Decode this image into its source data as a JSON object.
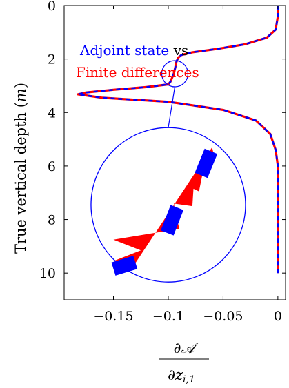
{
  "chart_data": {
    "type": "line",
    "title": "",
    "ylabel": "True vertical depth (m)",
    "ylabel_parts": {
      "text": "True vertical depth (",
      "unit": "m",
      "close": ")"
    },
    "xlabel_parts": {
      "numerator": "∂𝒜",
      "denominator": "∂z",
      "subscript": "i,1"
    },
    "xlim": [
      -0.195,
      0.007
    ],
    "ylim": [
      0,
      11
    ],
    "y_inverted": true,
    "xticks": [
      -0.15,
      -0.1,
      -0.05,
      0
    ],
    "xtick_labels": [
      "−0.15",
      "−0.1",
      "−0.05",
      "0"
    ],
    "yticks": [
      0,
      2,
      4,
      6,
      8,
      10
    ],
    "ytick_labels": [
      "0",
      "2",
      "4",
      "6",
      "8",
      "10"
    ],
    "grid": false,
    "legend_placement": "top-left",
    "legend": {
      "line1_prefix": "Adjoint state",
      "line1_suffix": " vs",
      "line2": "Finite differences"
    },
    "colors": {
      "adjoint": "#0000ff",
      "finite": "#ff0000",
      "axis": "#000000"
    },
    "series": [
      {
        "name": "Adjoint state",
        "style": "dashed",
        "x": [
          0,
          0,
          -0.002,
          -0.01,
          -0.03,
          -0.055,
          -0.078,
          -0.088,
          -0.091,
          -0.093,
          -0.0935,
          -0.095,
          -0.096,
          -0.097,
          -0.098,
          -0.1,
          -0.12,
          -0.15,
          -0.175,
          -0.1825,
          -0.16,
          -0.1,
          -0.05,
          -0.02,
          -0.007,
          -0.002,
          0,
          0
        ],
        "y": [
          0,
          0.4,
          0.9,
          1.2,
          1.45,
          1.62,
          1.75,
          1.85,
          1.95,
          2.15,
          2.3,
          2.55,
          2.65,
          2.75,
          2.85,
          2.95,
          3.05,
          3.15,
          3.25,
          3.32,
          3.45,
          3.6,
          3.9,
          4.3,
          4.8,
          5.4,
          6.0,
          10.0
        ]
      },
      {
        "name": "Finite differences",
        "style": "solid",
        "x": [
          0,
          0,
          -0.002,
          -0.01,
          -0.03,
          -0.055,
          -0.078,
          -0.088,
          -0.091,
          -0.093,
          -0.0935,
          -0.095,
          -0.096,
          -0.097,
          -0.098,
          -0.1,
          -0.12,
          -0.15,
          -0.175,
          -0.1825,
          -0.16,
          -0.1,
          -0.05,
          -0.02,
          -0.007,
          -0.002,
          0,
          0
        ],
        "y": [
          0,
          0.4,
          0.9,
          1.2,
          1.45,
          1.62,
          1.75,
          1.85,
          1.95,
          2.15,
          2.3,
          2.55,
          2.65,
          2.75,
          2.85,
          2.95,
          3.05,
          3.15,
          3.25,
          3.32,
          3.45,
          3.6,
          3.9,
          4.3,
          4.8,
          5.4,
          6.0,
          10.0
        ]
      }
    ],
    "annotations": {
      "zoom_source_center": [
        -0.094,
        2.55
      ],
      "zoom_target_center": [
        -0.1,
        7.45
      ],
      "zoom_finite_path": [
        [
          -0.132,
          9.75
        ],
        [
          -0.15,
          9.55
        ],
        [
          -0.125,
          9.15
        ],
        [
          -0.15,
          8.75
        ],
        [
          -0.09,
          8.35
        ],
        [
          -0.095,
          7.4
        ],
        [
          -0.078,
          7.5
        ],
        [
          -0.077,
          6.85
        ],
        [
          -0.072,
          6.95
        ],
        [
          -0.068,
          6.15
        ],
        [
          -0.058,
          5.65
        ],
        [
          -0.06,
          5.3
        ]
      ],
      "zoom_adjoint_segments": [
        [
          [
            -0.13,
            9.6
          ],
          [
            -0.15,
            9.85
          ]
        ],
        [
          [
            -0.092,
            7.55
          ],
          [
            -0.101,
            8.5
          ]
        ],
        [
          [
            -0.061,
            5.45
          ],
          [
            -0.07,
            6.35
          ]
        ]
      ]
    }
  }
}
